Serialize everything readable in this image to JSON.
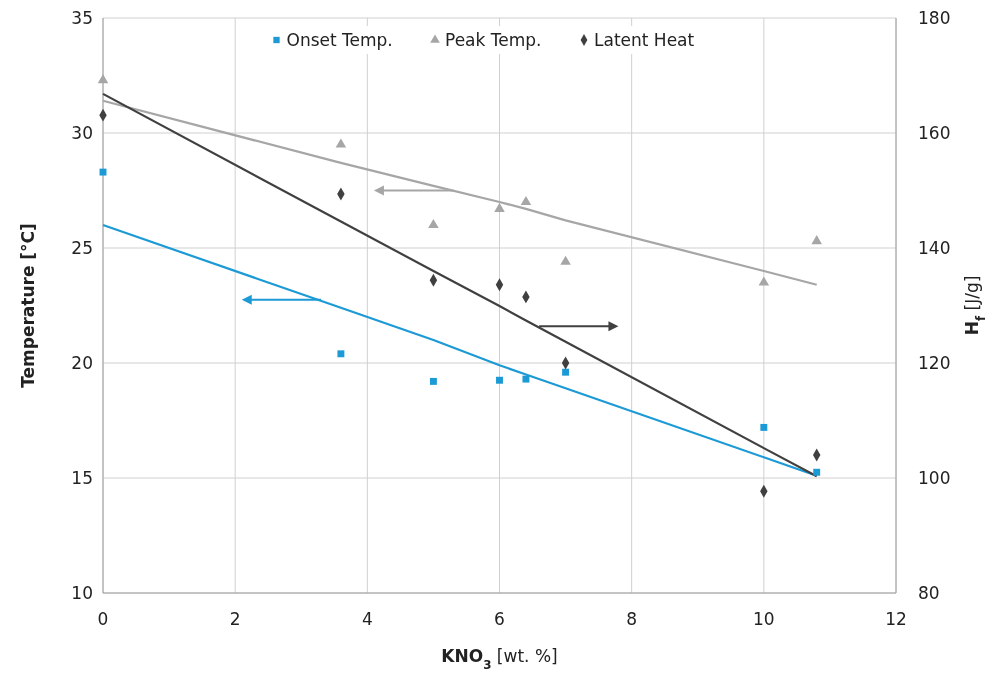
{
  "chart_data": {
    "type": "scatter",
    "xlabel": "KNO$_{3}$ [wt. %]",
    "ylabel": "Temperature [°C]",
    "y2label": "H$_{f}$ [J/g]",
    "x": [
      0,
      3.6,
      5,
      6,
      6.4,
      7,
      10,
      10.8
    ],
    "series": [
      {
        "name": "Onset Temp.",
        "color": "#1c9ad6",
        "marker": "square",
        "values": [
          28.3,
          20.4,
          19.2,
          19.25,
          19.3,
          19.6,
          17.2,
          15.25
        ]
      },
      {
        "name": "Peak Temp.",
        "color": "#a6a6a6",
        "marker": "triangle",
        "values": [
          32.3,
          29.5,
          26.0,
          26.7,
          27.0,
          24.4,
          23.5,
          25.3
        ]
      },
      {
        "name": "Latent Heat",
        "color": "#404040",
        "marker": "diamond",
        "axis": "y2",
        "values": [
          163.1,
          149.4,
          134.4,
          133.6,
          131.5,
          120.0,
          97.7,
          104.0
        ]
      },
      {
        "type": "line",
        "color": "#1c9ad6",
        "values": [
          26.0,
          22.4,
          21.0,
          19.9,
          19.5,
          18.9,
          15.9,
          15.1
        ]
      },
      {
        "type": "line",
        "color": "#a6a6a6",
        "values": [
          31.4,
          28.7,
          27.7,
          27.0,
          26.7,
          26.2,
          24.0,
          23.4
        ]
      },
      {
        "type": "line",
        "color": "#404040",
        "axis": "y2",
        "values": [
          166.8,
          144.6,
          136.0,
          129.9,
          127.4,
          123.7,
          105.2,
          100.3
        ]
      }
    ],
    "xlim": [
      0,
      12
    ],
    "xticks": [
      0,
      2,
      4,
      6,
      8,
      10,
      12
    ],
    "ylim": [
      10,
      35
    ],
    "yticks": [
      10,
      15,
      20,
      25,
      30,
      35
    ],
    "y2lim": [
      80,
      180
    ],
    "y2ticks": [
      80,
      100,
      120,
      140,
      160,
      180
    ],
    "grid": true,
    "legend": "top"
  }
}
